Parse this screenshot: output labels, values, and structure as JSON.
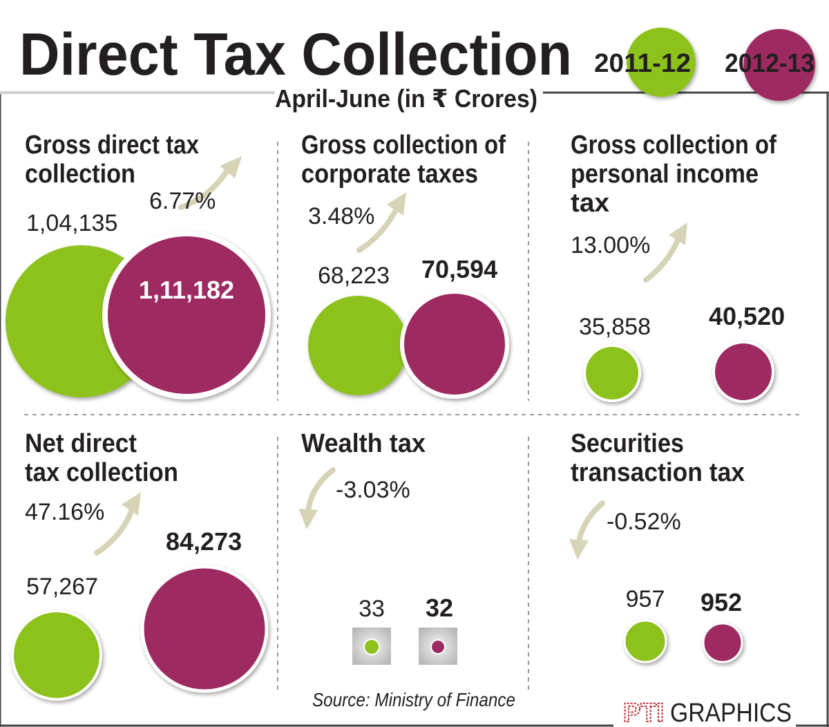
{
  "title": "Direct Tax Collection",
  "subtitle": "April-June (in ₹ Crores)",
  "legend": [
    {
      "label": "2011-12",
      "color": "#8dc21f"
    },
    {
      "label": "2012-13",
      "color": "#9e2c62"
    }
  ],
  "colors": {
    "y2011": "#8dc21f",
    "y2012": "#9e2c62",
    "arrow": "#d7d3b6",
    "text": "#231f20"
  },
  "source": "Source: Ministry of Finance",
  "credit": {
    "logo": "PTI",
    "text": "GRAPHICS"
  },
  "chart_data": [
    {
      "type": "bubble",
      "title": "Gross direct tax collection",
      "change": "6.77%",
      "direction": "up",
      "categories": [
        "2011-12",
        "2012-13"
      ],
      "values": [
        104135,
        111182
      ],
      "labels": [
        "1,04,135",
        "1,11,182"
      ]
    },
    {
      "type": "bubble",
      "title": "Gross collection of corporate taxes",
      "change": "3.48%",
      "direction": "up",
      "categories": [
        "2011-12",
        "2012-13"
      ],
      "values": [
        68223,
        70594
      ],
      "labels": [
        "68,223",
        "70,594"
      ]
    },
    {
      "type": "bubble",
      "title": "Gross collection of personal income tax",
      "change": "13.00%",
      "direction": "up",
      "categories": [
        "2011-12",
        "2012-13"
      ],
      "values": [
        35858,
        40520
      ],
      "labels": [
        "35,858",
        "40,520"
      ]
    },
    {
      "type": "bubble",
      "title": "Net direct tax collection",
      "change": "47.16%",
      "direction": "up",
      "categories": [
        "2011-12",
        "2012-13"
      ],
      "values": [
        57267,
        84273
      ],
      "labels": [
        "57,267",
        "84,273"
      ]
    },
    {
      "type": "bubble",
      "title": "Wealth tax",
      "change": "-3.03%",
      "direction": "down",
      "categories": [
        "2011-12",
        "2012-13"
      ],
      "values": [
        33,
        32
      ],
      "labels": [
        "33",
        "32"
      ]
    },
    {
      "type": "bubble",
      "title": "Securities transaction tax",
      "change": "-0.52%",
      "direction": "down",
      "categories": [
        "2011-12",
        "2012-13"
      ],
      "values": [
        957,
        952
      ],
      "labels": [
        "957",
        "952"
      ]
    }
  ]
}
